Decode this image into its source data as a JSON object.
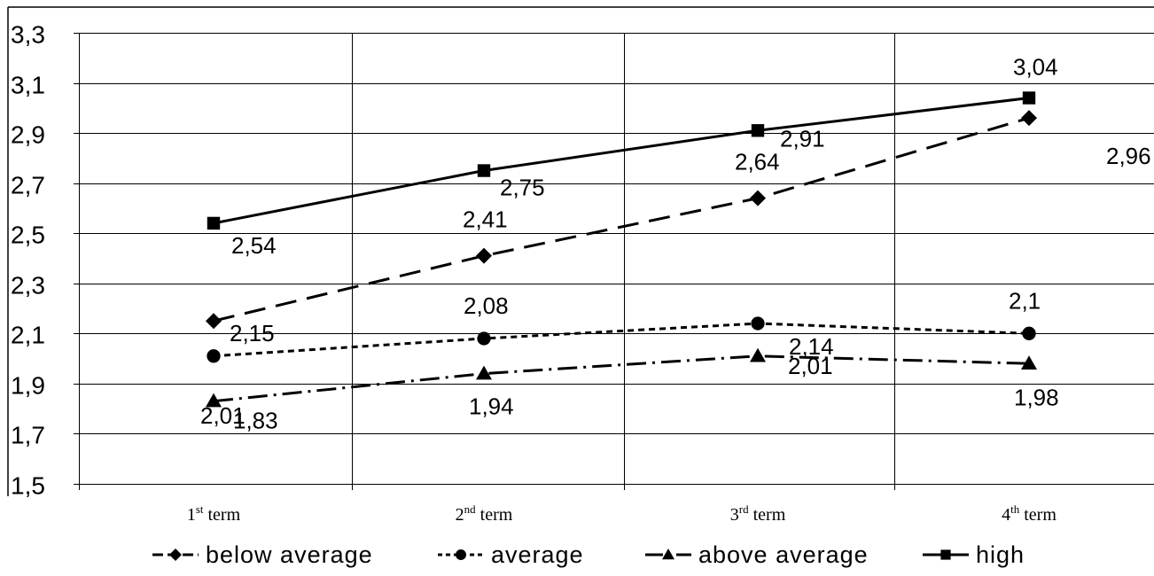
{
  "chart_data": {
    "type": "line",
    "categories": [
      {
        "num": "1",
        "sup": "st",
        "word": "term"
      },
      {
        "num": "2",
        "sup": "nd",
        "word": "term"
      },
      {
        "num": "3",
        "sup": "rd",
        "word": "term"
      },
      {
        "num": "4",
        "sup": "th",
        "word": "term"
      }
    ],
    "ylim": [
      1.5,
      3.3
    ],
    "yticks": [
      "1,5",
      "1,7",
      "1,9",
      "2,1",
      "2,3",
      "2,5",
      "2,7",
      "2,9",
      "3,1",
      "3,3"
    ],
    "grid": true,
    "legend_position": "bottom",
    "series": [
      {
        "name": "below average",
        "marker": "diamond",
        "dash": "dashed",
        "values": [
          2.15,
          2.41,
          2.64,
          2.96
        ],
        "labels": [
          "2,15",
          "2,41",
          "2,64",
          "2,96"
        ]
      },
      {
        "name": "average",
        "marker": "circle",
        "dash": "dotted",
        "values": [
          2.01,
          2.08,
          2.14,
          2.1
        ],
        "labels": [
          "2,01",
          "2,08",
          "2,14",
          "2,1"
        ]
      },
      {
        "name": "above average",
        "marker": "triangle",
        "dash": "dash-dot",
        "values": [
          1.83,
          1.94,
          2.01,
          1.98
        ],
        "labels": [
          "1,83",
          "1,94",
          "2,01",
          "1,98"
        ]
      },
      {
        "name": "high",
        "marker": "square",
        "dash": "solid",
        "values": [
          2.54,
          2.75,
          2.91,
          3.04
        ],
        "labels": [
          "2,54",
          "2,75",
          "2,91",
          "3,04"
        ]
      }
    ]
  }
}
